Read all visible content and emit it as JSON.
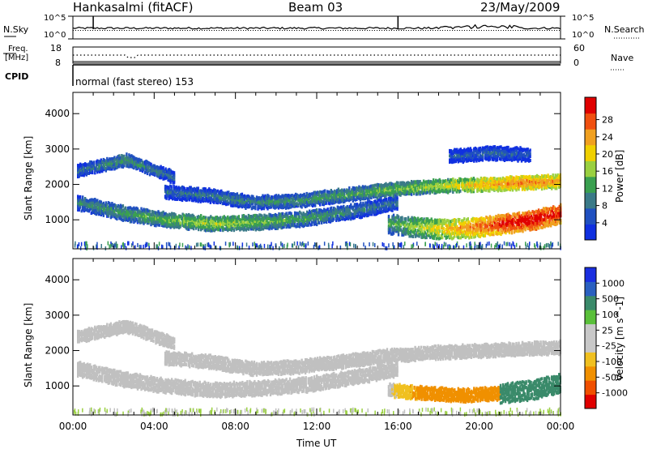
{
  "header": {
    "station": "Hankasalmi (fitACF)",
    "beam": "Beam 03",
    "date": "23/May/2009"
  },
  "top_panels": {
    "nsky_label": "N.Sky",
    "nsearch_label": "N.Search",
    "noise_tick_top": "10^5",
    "noise_tick_bottom": "10^0",
    "freq_label_1": "Freq.",
    "freq_label_2": "[MHz]",
    "freq_tick_top": "18",
    "freq_tick_bottom": "8",
    "nave_label": "Nave",
    "nave_tick_top": "60",
    "nave_tick_bottom": "0",
    "cpid_label": "CPID",
    "program_text": "normal (fast stereo) 153"
  },
  "axes": {
    "ylabel": "Slant Range [km]",
    "xlabel": "Time UT",
    "x_ticks": [
      "00:00",
      "04:00",
      "08:00",
      "12:00",
      "16:00",
      "20:00",
      "00:00"
    ],
    "y_ticks": [
      "1000",
      "2000",
      "3000",
      "4000"
    ]
  },
  "colors": {
    "power_scale": [
      "#1030e0",
      "#2050c0",
      "#3a7a88",
      "#3aa050",
      "#9ad040",
      "#f0d000",
      "#f0a020",
      "#f05010",
      "#e00000"
    ],
    "velocity_scale": [
      "#1a2fe0",
      "#2a60c0",
      "#3a8a6a",
      "#5ac03a",
      "#c8c8c8",
      "#c8c8c8",
      "#f0c020",
      "#f09000",
      "#f05000",
      "#e00000"
    ],
    "ground_scatter": "#c0c0c0"
  },
  "chart_data": [
    {
      "type": "heatmap",
      "name": "power",
      "title": "Power [dB]",
      "xlabel": "Time UT",
      "ylabel": "Slant Range [km]",
      "xlim": [
        0,
        24
      ],
      "ylim": [
        180,
        4600
      ],
      "colorbar_label": "Power [dB]",
      "colorbar_ticks": [
        "4",
        "8",
        "12",
        "16",
        "20",
        "24",
        "28"
      ],
      "colorbar_range": [
        0,
        30
      ],
      "bands": [
        {
          "t_start": 0.2,
          "t_end": 5.0,
          "range_center": [
            2400,
            2550,
            2700,
            2450,
            2200
          ],
          "width_km": 180,
          "power_db": [
            8,
            10,
            12,
            10,
            8
          ]
        },
        {
          "t_start": 0.2,
          "t_end": 16.0,
          "range_center": [
            1500,
            1200,
            1000,
            900,
            950,
            1050,
            1250,
            1500
          ],
          "width_km": 220,
          "power_db": [
            10,
            12,
            14,
            16,
            14,
            12,
            10,
            8
          ]
        },
        {
          "t_start": 4.5,
          "t_end": 24.0,
          "range_center": [
            1800,
            1700,
            1500,
            1550,
            1700,
            1850,
            1950,
            2000,
            2050,
            2100
          ],
          "width_km": 200,
          "power_db": [
            8,
            9,
            10,
            11,
            12,
            14,
            16,
            20,
            24,
            22
          ]
        },
        {
          "t_start": 15.5,
          "t_end": 24.0,
          "range_center": [
            900,
            800,
            750,
            800,
            900,
            1000,
            1200
          ],
          "width_km": 300,
          "power_db": [
            12,
            16,
            20,
            24,
            28,
            30,
            28
          ]
        },
        {
          "t_start": 18.5,
          "t_end": 22.5,
          "range_center": [
            2800,
            2900,
            2850
          ],
          "width_km": 200,
          "power_db": [
            6,
            8,
            6
          ]
        }
      ]
    },
    {
      "type": "heatmap",
      "name": "velocity",
      "title": "Velocity [m s^-1]",
      "xlabel": "Time UT",
      "ylabel": "Slant Range [km]",
      "xlim": [
        0,
        24
      ],
      "ylim": [
        180,
        4600
      ],
      "colorbar_label": "Velocity [m s^-1]",
      "colorbar_ticks": [
        "1000",
        "500",
        "100",
        "25",
        "-25",
        "-100",
        "-500",
        "-1000"
      ],
      "bands": [
        {
          "t_start": 0.2,
          "t_end": 5.0,
          "range_center": [
            2400,
            2550,
            2700,
            2450,
            2200
          ],
          "width_km": 180,
          "velocity": [
            0,
            0,
            0,
            0,
            0
          ]
        },
        {
          "t_start": 0.2,
          "t_end": 16.0,
          "range_center": [
            1500,
            1200,
            1000,
            900,
            950,
            1050,
            1250,
            1500
          ],
          "width_km": 220,
          "velocity": [
            0,
            0,
            0,
            0,
            0,
            0,
            0,
            0
          ]
        },
        {
          "t_start": 4.5,
          "t_end": 24.0,
          "range_center": [
            1800,
            1700,
            1500,
            1550,
            1700,
            1850,
            1950,
            2000,
            2050,
            2100
          ],
          "width_km": 200,
          "velocity": [
            0,
            0,
            0,
            0,
            0,
            0,
            0,
            0,
            0,
            0
          ]
        },
        {
          "t_start": 15.5,
          "t_end": 21.0,
          "range_center": [
            900,
            800,
            750,
            800
          ],
          "width_km": 200,
          "velocity": [
            0,
            -150,
            -200,
            -150
          ]
        },
        {
          "t_start": 21.0,
          "t_end": 24.0,
          "range_center": [
            800,
            900,
            1100
          ],
          "width_km": 300,
          "velocity": [
            200,
            300,
            400
          ]
        }
      ]
    }
  ]
}
